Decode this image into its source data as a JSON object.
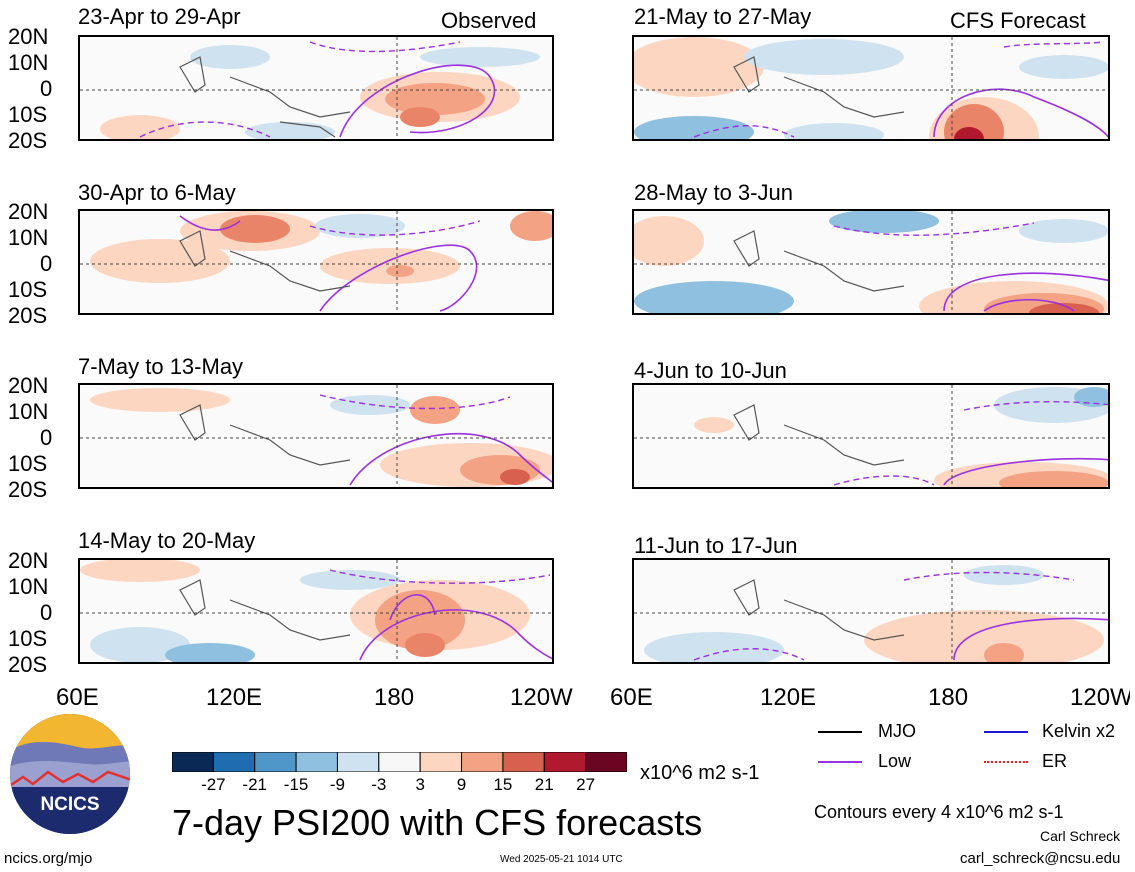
{
  "panels": [
    {
      "title": "23-Apr to 29-Apr",
      "tag": "Observed"
    },
    {
      "title": "21-May to 27-May",
      "tag": "CFS Forecast"
    },
    {
      "title": "30-Apr to 6-May",
      "tag": ""
    },
    {
      "title": "28-May to 3-Jun",
      "tag": ""
    },
    {
      "title": "7-May to 13-May",
      "tag": ""
    },
    {
      "title": "4-Jun to 10-Jun",
      "tag": ""
    },
    {
      "title": "14-May to 20-May",
      "tag": ""
    },
    {
      "title": "11-Jun to 17-Jun",
      "tag": ""
    }
  ],
  "lat_labels": [
    "20N",
    "10N",
    "0",
    "10S",
    "20S"
  ],
  "lon_labels": [
    "60E",
    "120E",
    "180",
    "120W"
  ],
  "colorbar": {
    "ticks": [
      "-27",
      "-21",
      "-15",
      "-9",
      "-3",
      "3",
      "9",
      "15",
      "21",
      "27"
    ],
    "colors": [
      "#0a2a55",
      "#1f6db0",
      "#4f97c9",
      "#8fc0df",
      "#cfe2f0",
      "#f7f7f7",
      "#fcd6c1",
      "#f3a383",
      "#d8604f",
      "#b1192e",
      "#6b0522"
    ],
    "units": "x10^6 m2 s-1"
  },
  "legend": {
    "mjo": "MJO",
    "kelvin": "Kelvin x2",
    "low": "Low",
    "er": "ER",
    "colors": {
      "mjo": "#000000",
      "kelvin": "#1a1ad6",
      "low": "#9b30e0",
      "er": "#e02020"
    }
  },
  "main_title": "7-day PSI200 with CFS forecasts",
  "contour_note": "Contours every 4 x10^6 m2 s-1",
  "author": "Carl Schreck",
  "email": "carl_schreck@ncsu.edu",
  "site": "ncics.org/mjo",
  "timestamp": "Wed 2025-05-21 1014 UTC",
  "logo": {
    "text": "NCICS"
  }
}
